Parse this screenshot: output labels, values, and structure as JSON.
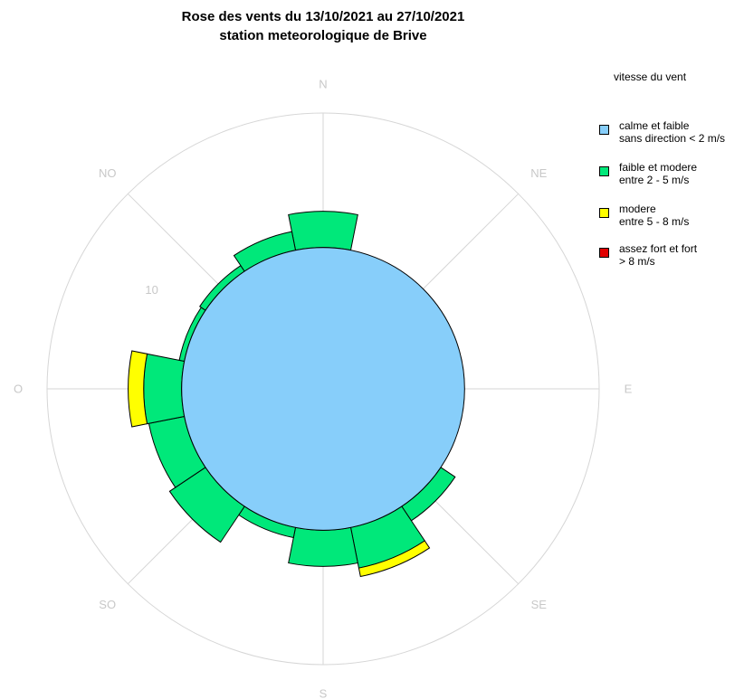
{
  "title": {
    "line1": "Rose des vents du 13/10/2021 au 27/10/2021",
    "line2": "station meteorologique de Brive"
  },
  "legend": {
    "title": "vitesse du vent",
    "items": [
      {
        "line1": "calme et faible",
        "line2": "sans direction < 2 m/s",
        "color": "#87CEFA"
      },
      {
        "line1": "faible et modere",
        "line2": "entre 2 - 5 m/s",
        "color": "#00E87A"
      },
      {
        "line1": "modere",
        "line2": "entre 5 - 8 m/s",
        "color": "#FFFF00"
      },
      {
        "line1": "assez fort et fort",
        "line2": "> 8 m/s",
        "color": "#E00000"
      }
    ]
  },
  "chart_data": {
    "type": "wind-rose",
    "title": "Rose des vents du 13/10/2021 au 27/10/2021 station meteorologique de Brive",
    "direction_labels": [
      "N",
      "NE",
      "E",
      "SE",
      "S",
      "SO",
      "O",
      "NO"
    ],
    "radial_tick_labels": [
      "10"
    ],
    "radial_max": 16,
    "calm_radius": 8.2,
    "sector_width_deg": 22.5,
    "sectors": [
      {
        "direction_deg": 0,
        "faible_modere": 2.1,
        "modere": 0.0,
        "fort": 0.0
      },
      {
        "direction_deg": 22.5,
        "faible_modere": 0.0,
        "modere": 0.0,
        "fort": 0.0
      },
      {
        "direction_deg": 45,
        "faible_modere": 0.0,
        "modere": 0.0,
        "fort": 0.0
      },
      {
        "direction_deg": 67.5,
        "faible_modere": 0.0,
        "modere": 0.0,
        "fort": 0.0
      },
      {
        "direction_deg": 90,
        "faible_modere": 0.0,
        "modere": 0.0,
        "fort": 0.0
      },
      {
        "direction_deg": 112.5,
        "faible_modere": 0.0,
        "modere": 0.0,
        "fort": 0.0
      },
      {
        "direction_deg": 135,
        "faible_modere": 1.0,
        "modere": 0.0,
        "fort": 0.0
      },
      {
        "direction_deg": 157.5,
        "faible_modere": 2.4,
        "modere": 0.5,
        "fort": 0.0
      },
      {
        "direction_deg": 180,
        "faible_modere": 2.1,
        "modere": 0.0,
        "fort": 0.0
      },
      {
        "direction_deg": 202.5,
        "faible_modere": 0.6,
        "modere": 0.0,
        "fort": 0.0
      },
      {
        "direction_deg": 225,
        "faible_modere": 2.5,
        "modere": 0.0,
        "fort": 0.0
      },
      {
        "direction_deg": 247.5,
        "faible_modere": 2.1,
        "modere": 0.0,
        "fort": 0.0
      },
      {
        "direction_deg": 270,
        "faible_modere": 2.2,
        "modere": 0.9,
        "fort": 0.0
      },
      {
        "direction_deg": 292.5,
        "faible_modere": 0.3,
        "modere": 0.0,
        "fort": 0.0
      },
      {
        "direction_deg": 315,
        "faible_modere": 0.4,
        "modere": 0.0,
        "fort": 0.0
      },
      {
        "direction_deg": 337.5,
        "faible_modere": 1.1,
        "modere": 0.0,
        "fort": 0.0
      }
    ]
  }
}
